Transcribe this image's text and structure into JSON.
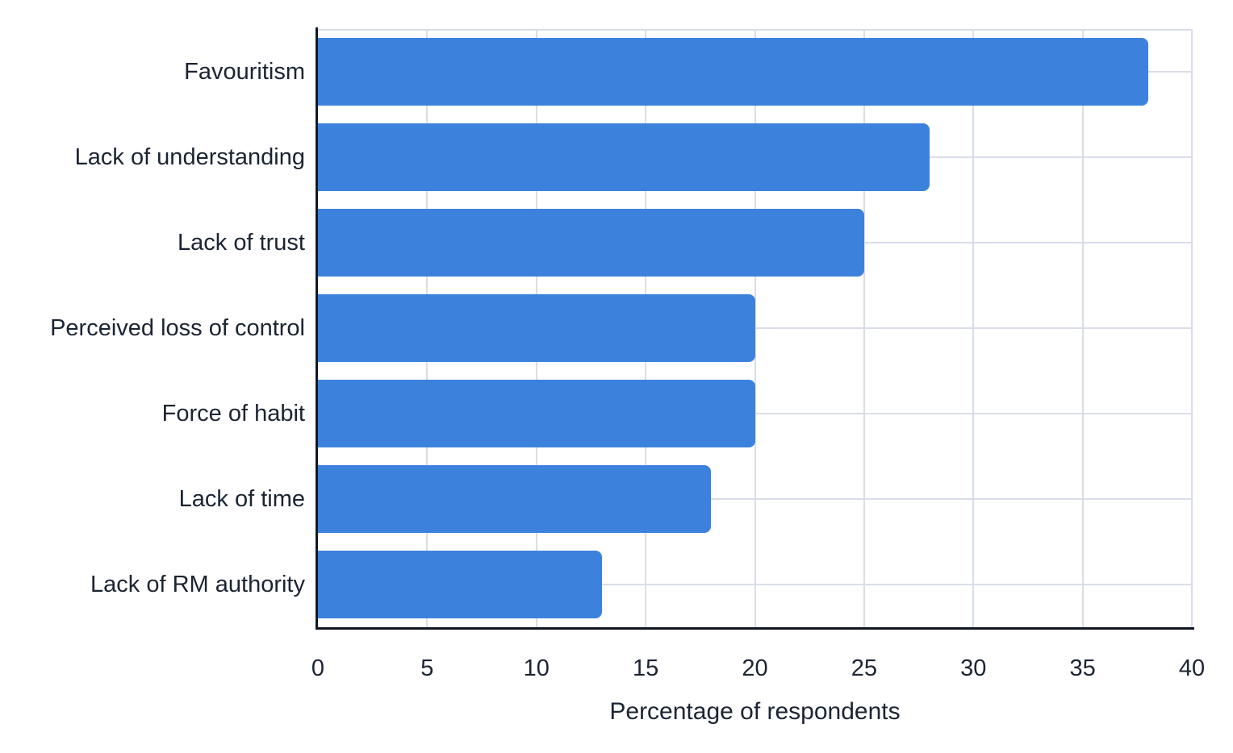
{
  "chart_data": {
    "type": "bar",
    "orientation": "horizontal",
    "title": "",
    "xlabel": "Percentage of respondents",
    "ylabel": "",
    "categories": [
      "Favouritism",
      "Lack of understanding",
      "Lack of trust",
      "Perceived loss of control",
      "Force of habit",
      "Lack of time",
      "Lack of RM authority"
    ],
    "values": [
      38,
      28,
      25,
      20,
      20,
      18,
      13
    ],
    "xlim": [
      0,
      40
    ],
    "xticks": [
      0,
      5,
      10,
      15,
      20,
      25,
      30,
      35,
      40
    ],
    "grid": true,
    "legend": false,
    "colors": {
      "bar": "#3c82dd",
      "axis": "#101826",
      "grid": "#d8dde8",
      "text": "#1b2433"
    }
  }
}
